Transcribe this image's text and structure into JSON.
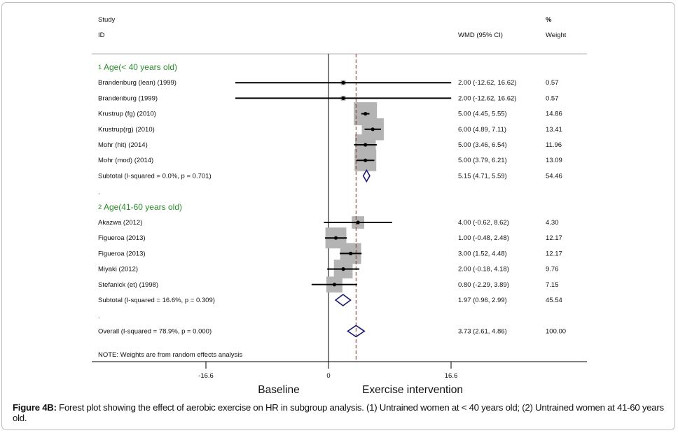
{
  "chart_data": {
    "type": "forest",
    "title": "",
    "headers": {
      "study_line1": "Study",
      "study_line2": "ID",
      "effect_label": "WMD (95% CI)",
      "weight_line1": "%",
      "weight_line2": "Weight"
    },
    "xaxis": {
      "range": [
        -16.6,
        16.6
      ],
      "ticks": [
        -16.6,
        0,
        16.6
      ],
      "tick_labels": [
        "-16.6",
        "0",
        "16.6"
      ],
      "left_label": "Baseline",
      "right_label": "Exercise intervention"
    },
    "overall_line_value": 3.73,
    "rows": [
      {
        "kind": "group",
        "number": "1",
        "label": "Age(< 40 years old)"
      },
      {
        "kind": "study",
        "label": "Brandenburg (lean) (1999)",
        "est": 2.0,
        "lo": -12.62,
        "hi": 16.62,
        "weight": 0.57,
        "ci_text": "2.00 (-12.62, 16.62)",
        "weight_text": "0.57"
      },
      {
        "kind": "study",
        "label": "Brandenburg (1999)",
        "est": 2.0,
        "lo": -12.62,
        "hi": 16.62,
        "weight": 0.57,
        "ci_text": "2.00 (-12.62, 16.62)",
        "weight_text": "0.57"
      },
      {
        "kind": "study",
        "label": "Krustrup (fg) (2010)",
        "est": 5.0,
        "lo": 4.45,
        "hi": 5.55,
        "weight": 14.86,
        "ci_text": "5.00 (4.45, 5.55)",
        "weight_text": "14.86"
      },
      {
        "kind": "study",
        "label": "Krustrup(rg) (2010)",
        "est": 6.0,
        "lo": 4.89,
        "hi": 7.11,
        "weight": 13.41,
        "ci_text": "6.00 (4.89, 7.11)",
        "weight_text": "13.41"
      },
      {
        "kind": "study",
        "label": "Mohr (hit) (2014)",
        "est": 5.0,
        "lo": 3.46,
        "hi": 6.54,
        "weight": 11.96,
        "ci_text": "5.00 (3.46, 6.54)",
        "weight_text": "11.96"
      },
      {
        "kind": "study",
        "label": "Mohr (mod) (2014)",
        "est": 5.0,
        "lo": 3.79,
        "hi": 6.21,
        "weight": 13.09,
        "ci_text": "5.00 (3.79, 6.21)",
        "weight_text": "13.09"
      },
      {
        "kind": "subtotal",
        "label": "Subtotal  (I-squared = 0.0%, p = 0.701)",
        "est": 5.15,
        "lo": 4.71,
        "hi": 5.59,
        "weight": 54.46,
        "ci_text": "5.15 (4.71, 5.59)",
        "weight_text": "54.46"
      },
      {
        "kind": "spacer",
        "label": "."
      },
      {
        "kind": "group",
        "number": "2",
        "label": "Age(41-60 years old)"
      },
      {
        "kind": "study",
        "label": "Akazwa  (2012)",
        "est": 4.0,
        "lo": -0.62,
        "hi": 8.62,
        "weight": 4.3,
        "ci_text": "4.00 (-0.62, 8.62)",
        "weight_text": "4.30"
      },
      {
        "kind": "study",
        "label": "Figueroa (2013)",
        "est": 1.0,
        "lo": -0.48,
        "hi": 2.48,
        "weight": 12.17,
        "ci_text": "1.00 (-0.48, 2.48)",
        "weight_text": "12.17"
      },
      {
        "kind": "study",
        "label": "Figueroa (2013)",
        "est": 3.0,
        "lo": 1.52,
        "hi": 4.48,
        "weight": 12.17,
        "ci_text": "3.00 (1.52, 4.48)",
        "weight_text": "12.17"
      },
      {
        "kind": "study",
        "label": "Miyaki  (2012)",
        "est": 2.0,
        "lo": -0.18,
        "hi": 4.18,
        "weight": 9.76,
        "ci_text": "2.00 (-0.18, 4.18)",
        "weight_text": "9.76"
      },
      {
        "kind": "study",
        "label": "Stefanick (et) (1998)",
        "est": 0.8,
        "lo": -2.29,
        "hi": 3.89,
        "weight": 7.15,
        "ci_text": "0.80 (-2.29, 3.89)",
        "weight_text": "7.15"
      },
      {
        "kind": "subtotal",
        "label": "Subtotal  (I-squared = 16.6%, p = 0.309)",
        "est": 1.97,
        "lo": 0.96,
        "hi": 2.99,
        "weight": 45.54,
        "ci_text": "1.97 (0.96, 2.99)",
        "weight_text": "45.54"
      },
      {
        "kind": "spacer",
        "label": "."
      },
      {
        "kind": "overall",
        "label": "Overall  (I-squared = 78.9%, p = 0.000)",
        "est": 3.73,
        "lo": 2.61,
        "hi": 4.86,
        "weight": 100.0,
        "ci_text": "3.73 (2.61, 4.86)",
        "weight_text": "100.00"
      }
    ],
    "note": "NOTE: Weights are from random effects analysis",
    "colors": {
      "group_label": "#2e8b2e",
      "box": "#b4b4b4",
      "diamond": "#1a1a6e",
      "overall_line": "#8b2a2a",
      "text": "#111111"
    }
  },
  "caption": {
    "label": "Figure 4B:",
    "text": " Forest plot showing the effect of aerobic exercise on HR in subgroup analysis. (1) Untrained women at < 40 years old; (2) Untrained women at 41-60 years old."
  }
}
